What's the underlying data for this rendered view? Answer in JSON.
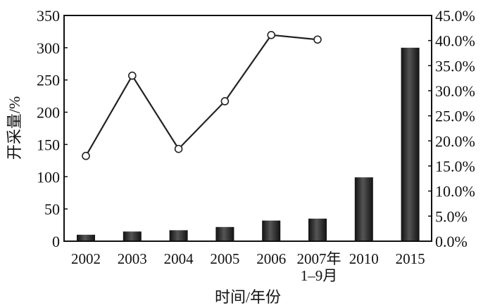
{
  "chart_data": {
    "type": "bar+line",
    "categories": [
      "2002",
      "2003",
      "2004",
      "2005",
      "2006",
      "2007年\n1–9月",
      "2010",
      "2015"
    ],
    "series": [
      {
        "type": "bar",
        "axis": "left",
        "values": [
          10,
          15,
          17,
          22,
          32,
          35,
          99,
          300
        ],
        "color": "#2a2a2a"
      },
      {
        "type": "line",
        "axis": "right",
        "marker": "open-circle",
        "values": [
          17.0,
          33.0,
          18.4,
          27.9,
          41.1,
          40.2,
          null,
          null
        ],
        "color": "#222222"
      }
    ],
    "xlabel": "时间/年份",
    "ylabel": "开采量/%",
    "ylim": [
      0,
      350
    ],
    "yticks": [
      0,
      50,
      100,
      150,
      200,
      250,
      300,
      350
    ],
    "y2lim": [
      0,
      45
    ],
    "y2ticks": [
      "0.0%",
      "5.0%",
      "10.0%",
      "15.0%",
      "20.0%",
      "25.0%",
      "30.0%",
      "35.0%",
      "40.0%",
      "45.0%"
    ],
    "grid": false,
    "legend": "none"
  }
}
